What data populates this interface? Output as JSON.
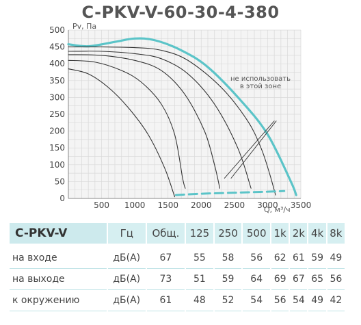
{
  "title": "C-PKV-V-60-30-4-380",
  "chart_data": {
    "type": "line",
    "ylabel": "Pv, Па",
    "xlabel": "Q, м³/ч",
    "xlim": [
      0,
      3500
    ],
    "ylim": [
      0,
      500
    ],
    "x_ticks": [
      500,
      1000,
      1500,
      2000,
      2500,
      3000,
      3500
    ],
    "y_ticks": [
      0,
      50,
      100,
      150,
      200,
      250,
      300,
      350,
      400,
      450,
      500
    ],
    "grid": true,
    "annotation": [
      "не использовать",
      "в этой зоне"
    ],
    "series": [
      {
        "values": [
          [
            0,
            458
          ],
          [
            300,
            452
          ],
          [
            700,
            465
          ],
          [
            1000,
            475
          ],
          [
            1300,
            470
          ],
          [
            1700,
            440
          ],
          [
            2100,
            390
          ],
          [
            2600,
            290
          ],
          [
            3000,
            190
          ],
          [
            3350,
            50
          ],
          [
            3430,
            10
          ]
        ]
      },
      {
        "values": [
          [
            0,
            450
          ],
          [
            500,
            450
          ],
          [
            1000,
            448
          ],
          [
            1400,
            440
          ],
          [
            1800,
            410
          ],
          [
            2300,
            330
          ],
          [
            2700,
            230
          ],
          [
            2900,
            150
          ],
          [
            3020,
            80
          ],
          [
            3120,
            10
          ]
        ]
      },
      {
        "values": [
          [
            0,
            437
          ],
          [
            500,
            437
          ],
          [
            1000,
            430
          ],
          [
            1400,
            415
          ],
          [
            1800,
            370
          ],
          [
            2200,
            280
          ],
          [
            2550,
            150
          ],
          [
            2750,
            30
          ]
        ]
      },
      {
        "values": [
          [
            0,
            427
          ],
          [
            500,
            425
          ],
          [
            1000,
            410
          ],
          [
            1400,
            380
          ],
          [
            1750,
            310
          ],
          [
            2050,
            200
          ],
          [
            2200,
            100
          ],
          [
            2280,
            30
          ]
        ]
      },
      {
        "values": [
          [
            0,
            410
          ],
          [
            400,
            405
          ],
          [
            800,
            380
          ],
          [
            1100,
            345
          ],
          [
            1400,
            280
          ],
          [
            1600,
            190
          ],
          [
            1720,
            60
          ],
          [
            1760,
            30
          ]
        ]
      },
      {
        "values": [
          [
            0,
            385
          ],
          [
            300,
            370
          ],
          [
            600,
            330
          ],
          [
            900,
            270
          ],
          [
            1200,
            190
          ],
          [
            1450,
            90
          ],
          [
            1600,
            5
          ]
        ]
      },
      {
        "values": [
          [
            1620,
            10
          ],
          [
            2000,
            14
          ],
          [
            2500,
            17
          ],
          [
            3000,
            20
          ],
          [
            3250,
            22
          ]
        ]
      },
      {
        "values": [
          [
            2350,
            60
          ],
          [
            3100,
            230
          ]
        ]
      },
      {
        "values": [
          [
            2450,
            60
          ],
          [
            3130,
            230
          ]
        ]
      }
    ]
  },
  "table": {
    "header": [
      "C-PKV-V",
      "Гц",
      "Общ.",
      "125",
      "250",
      "500",
      "1k",
      "2k",
      "4k",
      "8k"
    ],
    "rows": [
      [
        "на входе",
        "дБ(А)",
        "67",
        "55",
        "58",
        "56",
        "62",
        "61",
        "59",
        "49"
      ],
      [
        "на выходе",
        "дБ(А)",
        "73",
        "51",
        "59",
        "64",
        "69",
        "67",
        "65",
        "56"
      ],
      [
        "к окружению",
        "дБ(А)",
        "61",
        "48",
        "52",
        "54",
        "56",
        "54",
        "49",
        "42"
      ]
    ]
  },
  "colors": {
    "accent": "#5bc4c8",
    "curve": "#333333",
    "grid": "#d9d9d9",
    "header_bg": "#d6eff1"
  }
}
